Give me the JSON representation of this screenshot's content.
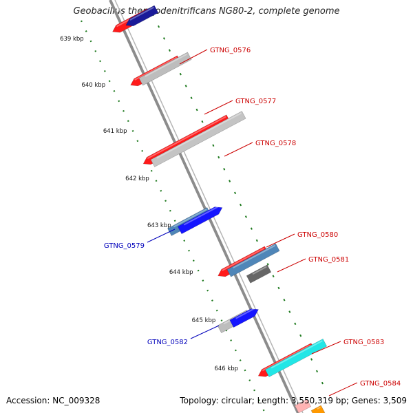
{
  "title": "Geobacillus thermodenitrificans NG80-2, complete genome",
  "footer": {
    "accession": "Accession: NC_009328",
    "summary": "Topology: circular; Length: 3,550,319 bp; Genes: 3,509"
  },
  "ruler": {
    "unit": "kbp",
    "ticks": [
      "639 kbp",
      "640 kbp",
      "641 kbp",
      "642 kbp",
      "643 kbp",
      "644 kbp",
      "645 kbp",
      "646 kbp"
    ]
  },
  "genes": [
    {
      "label": "GTNG_0576",
      "strand": "+"
    },
    {
      "label": "GTNG_0577",
      "strand": "+"
    },
    {
      "label": "GTNG_0578",
      "strand": "+"
    },
    {
      "label": "GTNG_0579",
      "strand": "-"
    },
    {
      "label": "GTNG_0580",
      "strand": "+"
    },
    {
      "label": "GTNG_0581",
      "strand": "+"
    },
    {
      "label": "GTNG_0582",
      "strand": "-"
    },
    {
      "label": "GTNG_0583",
      "strand": "+"
    },
    {
      "label": "GTNG_0584",
      "strand": "+"
    }
  ],
  "colors": {
    "forward_label": "#cc0000",
    "reverse_label": "#0000bb",
    "forward_gene": "#ff1a1a",
    "reverse_gene": "#1515ff",
    "ruler_dots": "#1f7a1f",
    "backbone": "#8c8c8c",
    "grey_feature": "#c4c4c4",
    "steel_feature": "#4f86b8",
    "cyan_feature": "#22e6e6",
    "dark_grey_feature": "#666666",
    "navy_feature": "#1a1a99"
  }
}
